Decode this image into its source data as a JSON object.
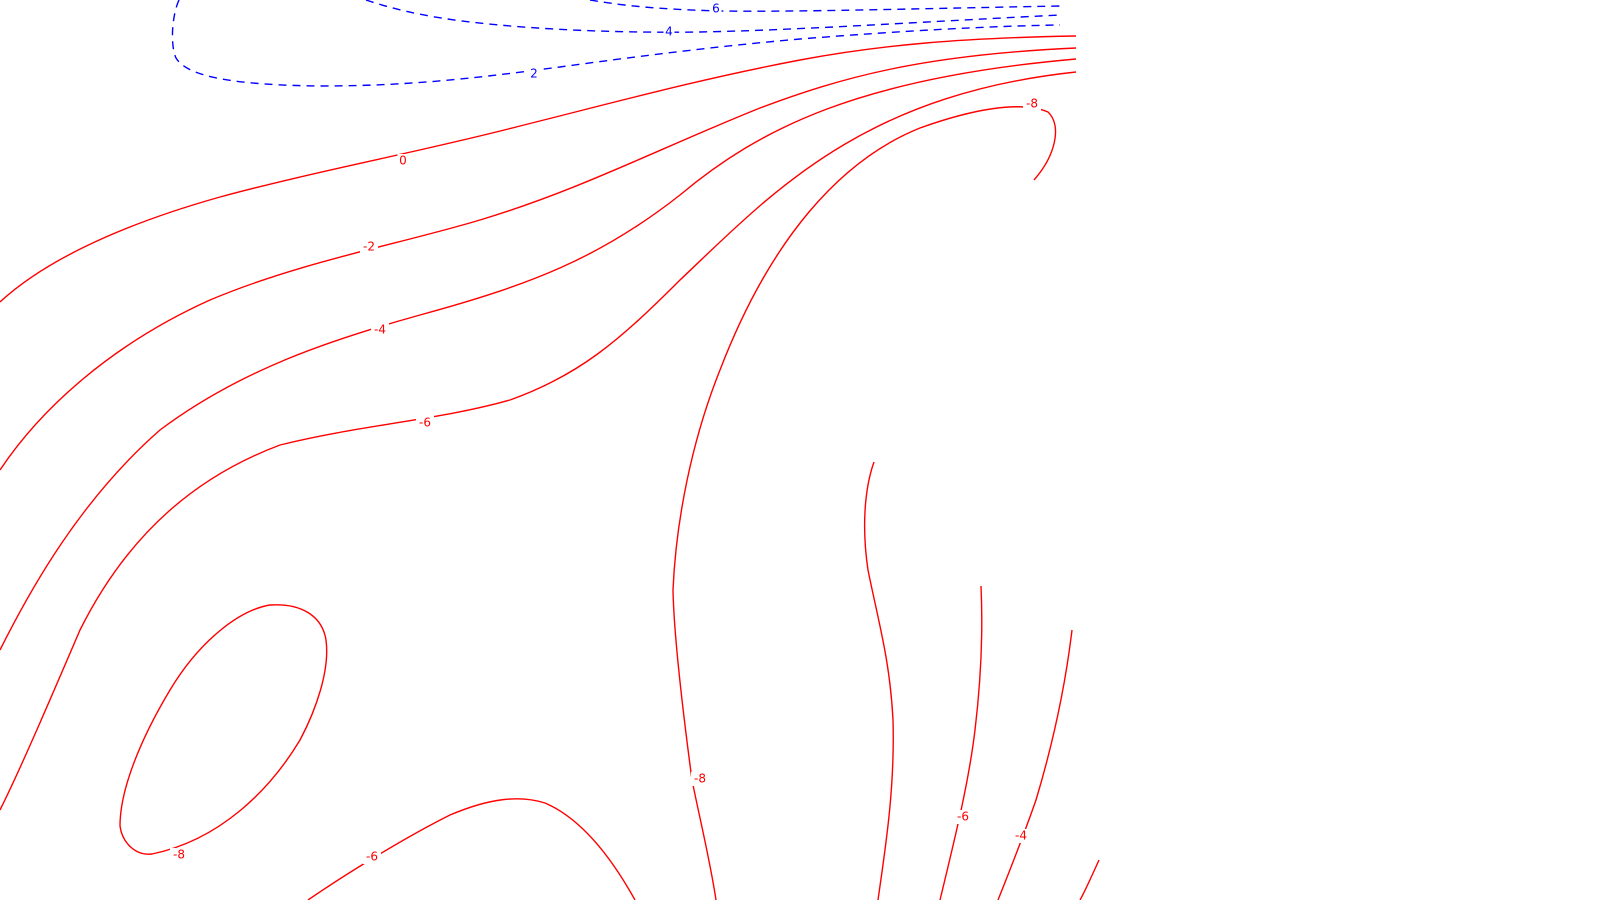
{
  "chart_data": {
    "type": "contour",
    "title": "",
    "xlabel": "",
    "ylabel": "",
    "grid": false,
    "legend": "none",
    "colors": {
      "positive": "#0000ff",
      "non_positive": "#ff0000"
    },
    "line_styles": {
      "positive": "dashed",
      "non_positive": "solid"
    },
    "contour_levels": [
      6,
      4,
      2,
      0,
      -2,
      -4,
      -6,
      -8
    ],
    "level_labels": [
      "-8",
      "-6",
      "-4",
      "-2",
      "0",
      "2",
      "4",
      "6"
    ]
  }
}
